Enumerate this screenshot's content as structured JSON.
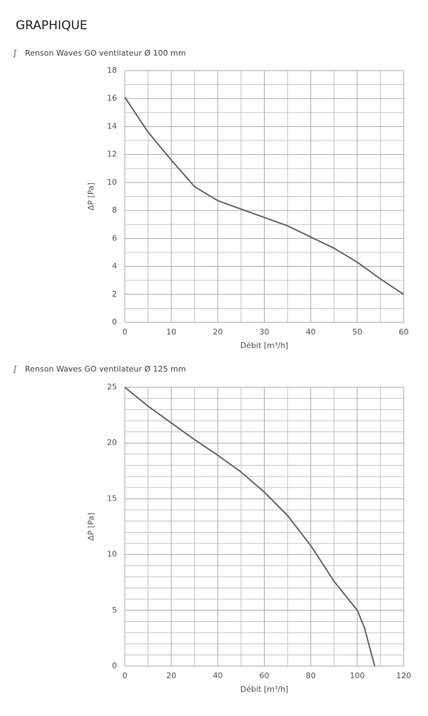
{
  "header": {
    "title": "GRAPHIQUE"
  },
  "chart_data": [
    {
      "type": "line",
      "title": "Renson Waves GO ventilateur Ø 100 mm",
      "xlabel": "Débit [m³/h]",
      "ylabel": "ΔP [Pa]",
      "x": [
        0,
        5,
        10,
        15,
        20,
        25,
        30,
        35,
        40,
        45,
        50,
        55,
        60
      ],
      "series": [
        {
          "color": "#666666",
          "values": [
            16.1,
            13.6,
            11.6,
            9.7,
            8.7,
            8.1,
            7.5,
            6.9,
            6.1,
            5.3,
            4.3,
            3.1,
            2.0
          ]
        }
      ],
      "xlim": [
        0,
        60
      ],
      "xticks": [
        0,
        10,
        20,
        30,
        40,
        50,
        60
      ],
      "ylim": [
        0,
        18
      ],
      "yticks": [
        0,
        2,
        4,
        6,
        8,
        10,
        12,
        14,
        16,
        18
      ],
      "grid": true
    },
    {
      "type": "line",
      "title": "Renson Waves GO ventilateur Ø 125 mm",
      "xlabel": "Débit [m³/h]",
      "ylabel": "ΔP [Pa]",
      "x": [
        0,
        10,
        20,
        30,
        40,
        50,
        60,
        70,
        80,
        90,
        100,
        103,
        107.5
      ],
      "series": [
        {
          "color": "#666666",
          "values": [
            25,
            23.3,
            21.8,
            20.3,
            18.9,
            17.4,
            15.6,
            13.5,
            10.8,
            7.6,
            5.0,
            3.5,
            0
          ]
        }
      ],
      "xlim": [
        0,
        120
      ],
      "xticks": [
        0,
        20,
        40,
        60,
        80,
        100,
        120
      ],
      "ylim": [
        0,
        25
      ],
      "yticks": [
        0,
        5,
        10,
        15,
        20,
        25
      ],
      "grid": true
    }
  ]
}
